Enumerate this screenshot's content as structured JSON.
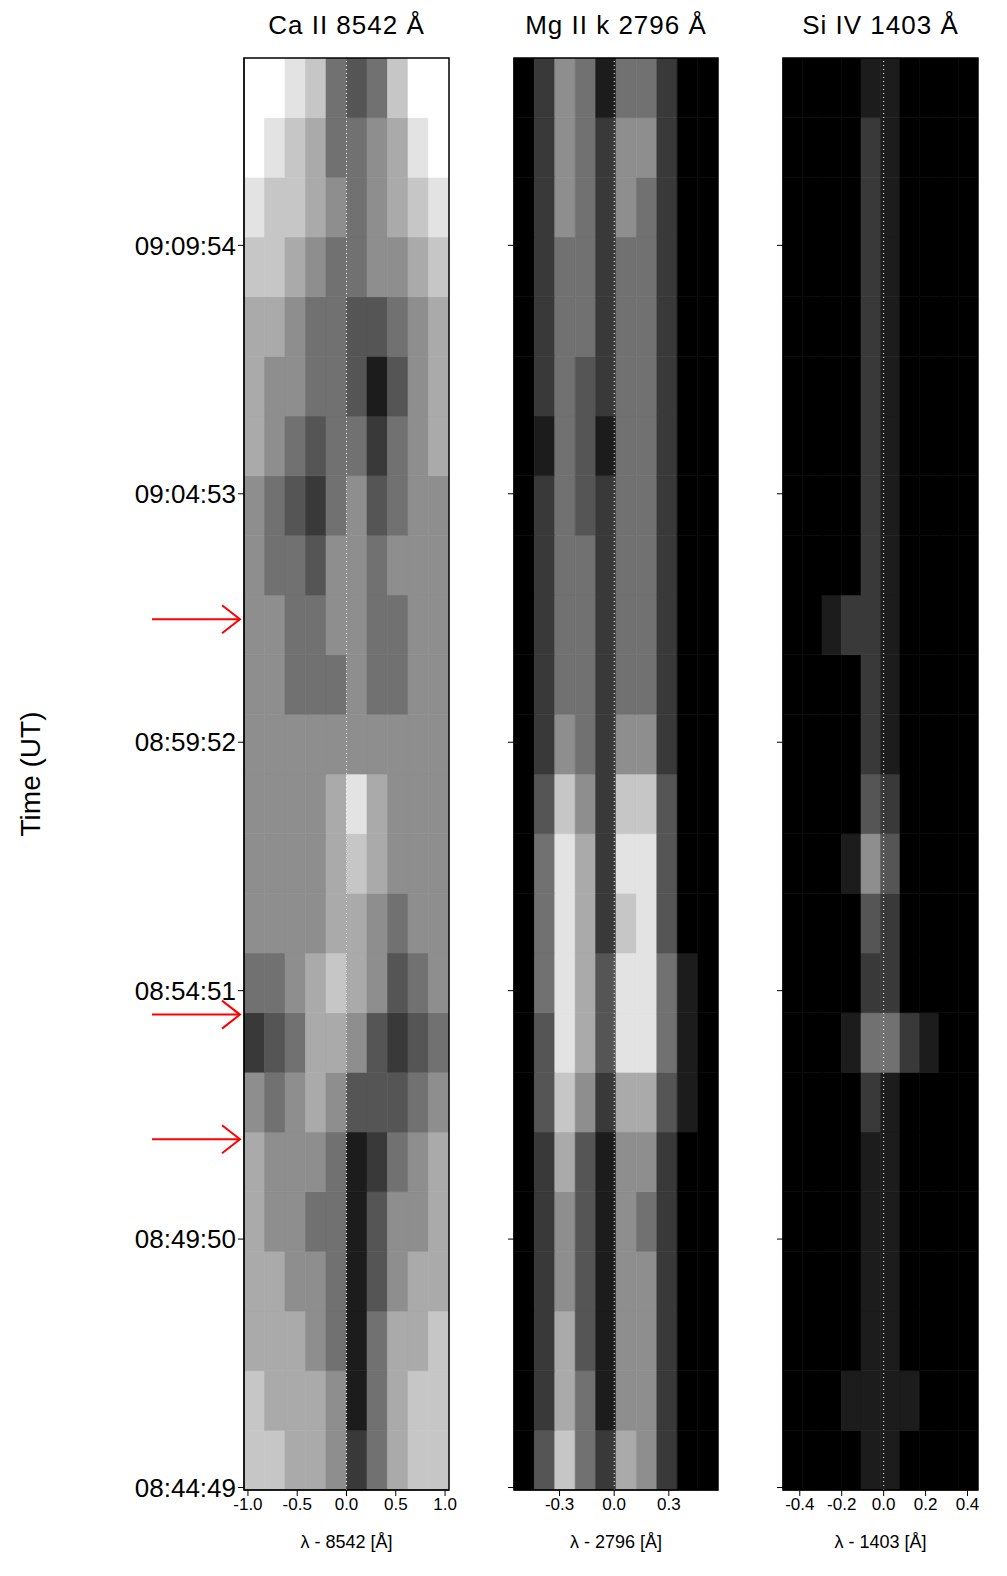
{
  "chart_data": [
    {
      "type": "heatmap",
      "title": "Ca II 8542 Å",
      "x_label": "λ - 8542 [Å]",
      "y_label": "Time (UT)",
      "xlim": [
        -1.04,
        1.04
      ],
      "xticks": [
        {
          "value": -1,
          "label": "-1.0"
        },
        -0.5,
        {
          "value": 0,
          "label": "0.0"
        },
        0.5,
        {
          "value": 1,
          "label": "1.0"
        }
      ],
      "ylim": [
        31486,
        33221
      ],
      "yticks": [
        {
          "value": 31489,
          "label": "08:44:49"
        },
        {
          "value": 31790,
          "label": "08:49:50"
        },
        {
          "value": 32091,
          "label": "08:54:51"
        },
        {
          "value": 32392,
          "label": "08:59:52"
        },
        {
          "value": 32693,
          "label": "09:04:53"
        },
        {
          "value": 32994,
          "label": "09:09:54"
        }
      ],
      "reference_x": 0,
      "arrows": [
        32541,
        32062,
        31911
      ],
      "zlim": [
        0,
        9
      ],
      "intensity": [
        [
          7,
          7,
          6,
          6,
          5,
          2,
          4,
          6,
          7,
          7
        ],
        [
          7,
          6,
          6,
          6,
          5,
          1,
          4,
          6,
          7,
          7
        ],
        [
          6,
          6,
          6,
          5,
          4,
          1,
          4,
          6,
          6,
          7
        ],
        [
          6,
          6,
          5,
          5,
          4,
          1,
          3,
          5,
          6,
          6
        ],
        [
          6,
          5,
          5,
          4,
          4,
          1,
          3,
          5,
          5,
          6
        ],
        [
          6,
          5,
          5,
          5,
          4,
          1,
          2,
          4,
          5,
          6
        ],
        [
          5,
          4,
          5,
          6,
          5,
          3,
          3,
          3,
          4,
          5
        ],
        [
          2,
          3,
          4,
          6,
          6,
          5,
          3,
          2,
          3,
          4
        ],
        [
          4,
          4,
          5,
          6,
          7,
          6,
          5,
          3,
          4,
          5
        ],
        [
          5,
          5,
          5,
          5,
          6,
          6,
          5,
          4,
          5,
          5
        ],
        [
          5,
          5,
          5,
          5,
          6,
          7,
          6,
          5,
          5,
          5
        ],
        [
          5,
          5,
          5,
          5,
          6,
          8,
          6,
          5,
          5,
          5
        ],
        [
          5,
          5,
          5,
          5,
          5,
          5,
          5,
          5,
          5,
          5
        ],
        [
          5,
          5,
          4,
          4,
          4,
          5,
          4,
          4,
          5,
          5
        ],
        [
          5,
          5,
          4,
          4,
          5,
          5,
          4,
          4,
          5,
          5
        ],
        [
          5,
          4,
          4,
          3,
          5,
          5,
          4,
          5,
          5,
          5
        ],
        [
          5,
          4,
          3,
          2,
          4,
          5,
          3,
          4,
          5,
          5
        ],
        [
          6,
          5,
          4,
          3,
          4,
          4,
          2,
          4,
          5,
          6
        ],
        [
          6,
          5,
          5,
          4,
          4,
          3,
          1,
          3,
          5,
          6
        ],
        [
          6,
          6,
          5,
          4,
          4,
          3,
          3,
          4,
          5,
          6
        ],
        [
          7,
          7,
          6,
          5,
          4,
          4,
          5,
          5,
          6,
          7
        ],
        [
          8,
          7,
          7,
          6,
          5,
          4,
          5,
          6,
          7,
          8
        ],
        [
          9,
          8,
          7,
          6,
          4,
          4,
          5,
          6,
          8,
          9
        ],
        [
          9,
          9,
          8,
          7,
          4,
          3,
          4,
          7,
          9,
          9
        ]
      ]
    },
    {
      "type": "heatmap",
      "title": "Mg II k 2796 Å",
      "x_label": "λ - 2796 [Å]",
      "xlim": [
        -0.55,
        0.57
      ],
      "xticks": [
        -0.3,
        {
          "value": 0,
          "label": "0.0"
        },
        0.3
      ],
      "ylim": [
        31486,
        33221
      ],
      "yticks": [
        {
          "value": 31489,
          "label": "08:44:49"
        },
        {
          "value": 31790,
          "label": "08:49:50"
        },
        {
          "value": 32091,
          "label": "08:54:51"
        },
        {
          "value": 32392,
          "label": "08:59:52"
        },
        {
          "value": 32693,
          "label": "09:04:53"
        },
        {
          "value": 32994,
          "label": "09:09:54"
        }
      ],
      "tick_labels": "x",
      "reference_x": 0,
      "zlim": [
        0,
        9
      ],
      "intensity": [
        [
          0,
          3,
          7,
          4,
          2,
          6,
          5,
          2,
          0,
          0
        ],
        [
          0,
          2,
          6,
          4,
          1,
          5,
          5,
          2,
          0,
          0
        ],
        [
          0,
          2,
          6,
          3,
          1,
          5,
          5,
          2,
          0,
          0
        ],
        [
          0,
          2,
          5,
          3,
          1,
          5,
          5,
          2,
          0,
          0
        ],
        [
          0,
          2,
          5,
          3,
          1,
          5,
          4,
          2,
          0,
          0
        ],
        [
          0,
          2,
          6,
          3,
          1,
          5,
          5,
          2,
          0,
          0
        ],
        [
          0,
          3,
          7,
          5,
          2,
          6,
          6,
          3,
          1,
          0
        ],
        [
          0,
          3,
          8,
          6,
          3,
          8,
          8,
          4,
          1,
          0
        ],
        [
          0,
          4,
          8,
          6,
          3,
          8,
          8,
          4,
          1,
          0
        ],
        [
          0,
          4,
          8,
          6,
          2,
          7,
          8,
          3,
          0,
          0
        ],
        [
          0,
          4,
          8,
          6,
          2,
          8,
          8,
          3,
          0,
          0
        ],
        [
          0,
          3,
          7,
          5,
          2,
          7,
          7,
          3,
          0,
          0
        ],
        [
          0,
          2,
          5,
          4,
          2,
          5,
          5,
          2,
          0,
          0
        ],
        [
          0,
          2,
          4,
          4,
          2,
          4,
          4,
          2,
          0,
          0
        ],
        [
          0,
          2,
          4,
          4,
          2,
          4,
          4,
          2,
          0,
          0
        ],
        [
          0,
          2,
          4,
          4,
          2,
          4,
          4,
          2,
          0,
          0
        ],
        [
          0,
          2,
          4,
          3,
          2,
          4,
          4,
          2,
          0,
          0
        ],
        [
          0,
          1,
          4,
          3,
          1,
          4,
          4,
          2,
          0,
          0
        ],
        [
          0,
          2,
          4,
          3,
          2,
          4,
          4,
          2,
          0,
          0
        ],
        [
          0,
          2,
          4,
          4,
          2,
          4,
          4,
          2,
          0,
          0
        ],
        [
          0,
          2,
          4,
          4,
          2,
          4,
          4,
          2,
          0,
          0
        ],
        [
          0,
          2,
          5,
          4,
          2,
          5,
          4,
          2,
          0,
          0
        ],
        [
          0,
          2,
          5,
          4,
          2,
          5,
          5,
          2,
          0,
          0
        ],
        [
          0,
          2,
          5,
          4,
          1,
          4,
          4,
          2,
          0,
          0
        ]
      ]
    },
    {
      "type": "heatmap",
      "title": "Si IV 1403 Å",
      "x_label": "λ - 1403 [Å]",
      "xlim": [
        -0.48,
        0.45
      ],
      "xticks": [
        -0.4,
        -0.2,
        {
          "value": 0,
          "label": "0.0"
        },
        0.2,
        0.4
      ],
      "ylim": [
        31486,
        33221
      ],
      "yticks": [
        {
          "value": 31489,
          "label": "08:44:49"
        },
        {
          "value": 31790,
          "label": "08:49:50"
        },
        {
          "value": 32091,
          "label": "08:54:51"
        },
        {
          "value": 32392,
          "label": "08:59:52"
        },
        {
          "value": 32693,
          "label": "09:04:53"
        },
        {
          "value": 32994,
          "label": "09:09:54"
        }
      ],
      "tick_labels": "x",
      "reference_x": 0,
      "zlim": [
        0,
        9
      ],
      "intensity": [
        [
          0,
          0,
          0,
          0,
          1,
          1,
          0,
          0,
          0,
          0
        ],
        [
          0,
          0,
          0,
          1,
          1,
          1,
          1,
          0,
          0,
          0
        ],
        [
          0,
          0,
          0,
          0,
          1,
          1,
          0,
          0,
          0,
          0
        ],
        [
          0,
          0,
          0,
          0,
          1,
          1,
          0,
          0,
          0,
          0
        ],
        [
          0,
          0,
          0,
          0,
          1,
          1,
          0,
          0,
          0,
          0
        ],
        [
          0,
          0,
          0,
          0,
          1,
          1,
          0,
          0,
          0,
          0
        ],
        [
          0,
          0,
          0,
          0,
          2,
          1,
          0,
          0,
          0,
          0
        ],
        [
          0,
          0,
          0,
          1,
          4,
          4,
          2,
          1,
          0,
          0
        ],
        [
          0,
          0,
          0,
          0,
          2,
          2,
          0,
          0,
          0,
          0
        ],
        [
          0,
          0,
          0,
          0,
          3,
          2,
          0,
          0,
          0,
          0
        ],
        [
          0,
          0,
          0,
          1,
          5,
          3,
          0,
          0,
          0,
          0
        ],
        [
          0,
          0,
          0,
          0,
          3,
          2,
          0,
          0,
          0,
          0
        ],
        [
          0,
          0,
          0,
          0,
          2,
          1,
          0,
          0,
          0,
          0
        ],
        [
          0,
          0,
          0,
          0,
          2,
          1,
          0,
          0,
          0,
          0
        ],
        [
          0,
          0,
          1,
          2,
          2,
          1,
          0,
          0,
          0,
          0
        ],
        [
          0,
          0,
          0,
          0,
          2,
          1,
          0,
          0,
          0,
          0
        ],
        [
          0,
          0,
          0,
          0,
          2,
          1,
          0,
          0,
          0,
          0
        ],
        [
          0,
          0,
          0,
          0,
          2,
          1,
          0,
          0,
          0,
          0
        ],
        [
          0,
          0,
          0,
          0,
          2,
          1,
          0,
          0,
          0,
          0
        ],
        [
          0,
          0,
          0,
          0,
          2,
          1,
          0,
          0,
          0,
          0
        ],
        [
          0,
          0,
          0,
          0,
          2,
          1,
          0,
          0,
          0,
          0
        ],
        [
          0,
          0,
          0,
          0,
          2,
          1,
          0,
          0,
          0,
          0
        ],
        [
          0,
          0,
          0,
          0,
          2,
          1,
          0,
          0,
          0,
          0
        ],
        [
          0,
          0,
          0,
          0,
          1,
          1,
          0,
          0,
          0,
          0
        ]
      ]
    }
  ]
}
